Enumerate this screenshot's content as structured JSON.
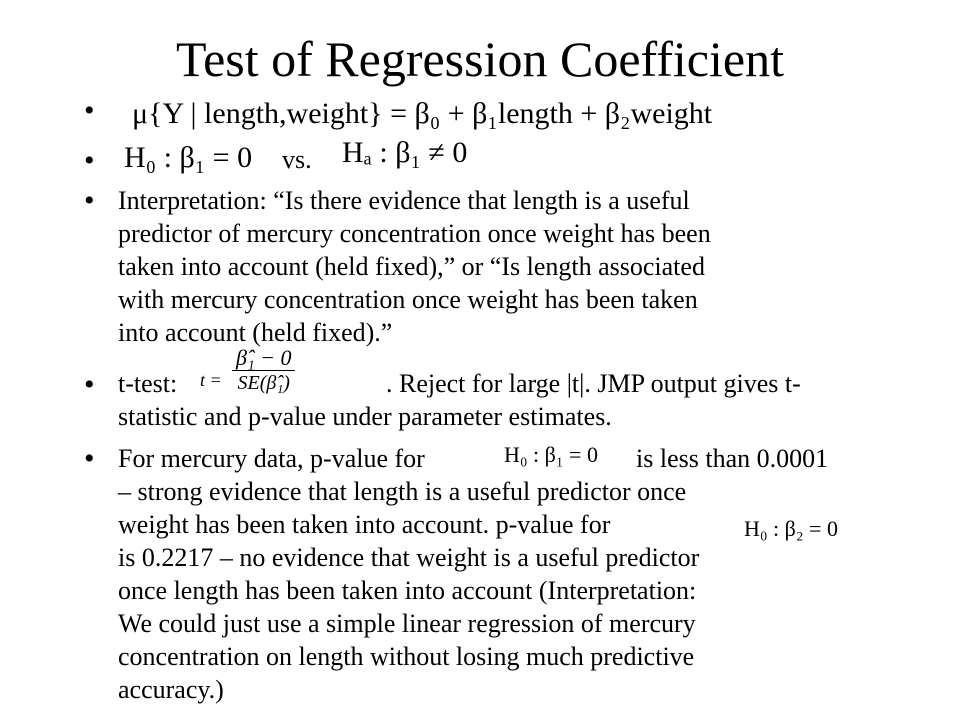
{
  "slide": {
    "title": "Test of Regression Coefficient",
    "bullet_char": "•",
    "model_equation": "μ{Y | length,weight} = β₀ + β₁length + β₂weight",
    "null_hypothesis": "H₀ : β₁ = 0",
    "vs_label": "vs.",
    "alt_hypothesis": "Hₐ : β₁ ≠ 0",
    "interpretation_lines": [
      "Interpretation: “Is there evidence that length is a useful",
      "predictor of mercury concentration once weight has been",
      "taken into account (held fixed),” or “Is length associated",
      "with mercury concentration once weight has been taken",
      "into account (held fixed).”"
    ],
    "ttest_prefix": "t-test:",
    "ttest_formula_lhs": "t =",
    "ttest_formula_num": "β̂₁ − 0",
    "ttest_formula_den": "SE(β̂₁)",
    "ttest_line1_rest": ".  Reject for large |t|.  JMP output gives t-",
    "ttest_line2": "statistic and p-value under parameter estimates.",
    "mercury_line1_prefix": "For mercury data, p-value for",
    "mercury_h0_beta1": "H₀ : β₁ = 0",
    "mercury_line1_suffix": "is less than 0.0001",
    "mercury_line2": "– strong evidence that length is a useful predictor once",
    "mercury_line3_prefix": "weight has been taken into account.  p-value for",
    "mercury_h0_beta2": "H₀ : β₂ = 0",
    "mercury_lines_rest": [
      "is 0.2217 – no evidence that weight is a useful predictor",
      "once length has been taken into account (Interpretation:",
      "We could just use a simple linear regression of mercury",
      "concentration on length without losing much predictive",
      "accuracy.)"
    ]
  }
}
